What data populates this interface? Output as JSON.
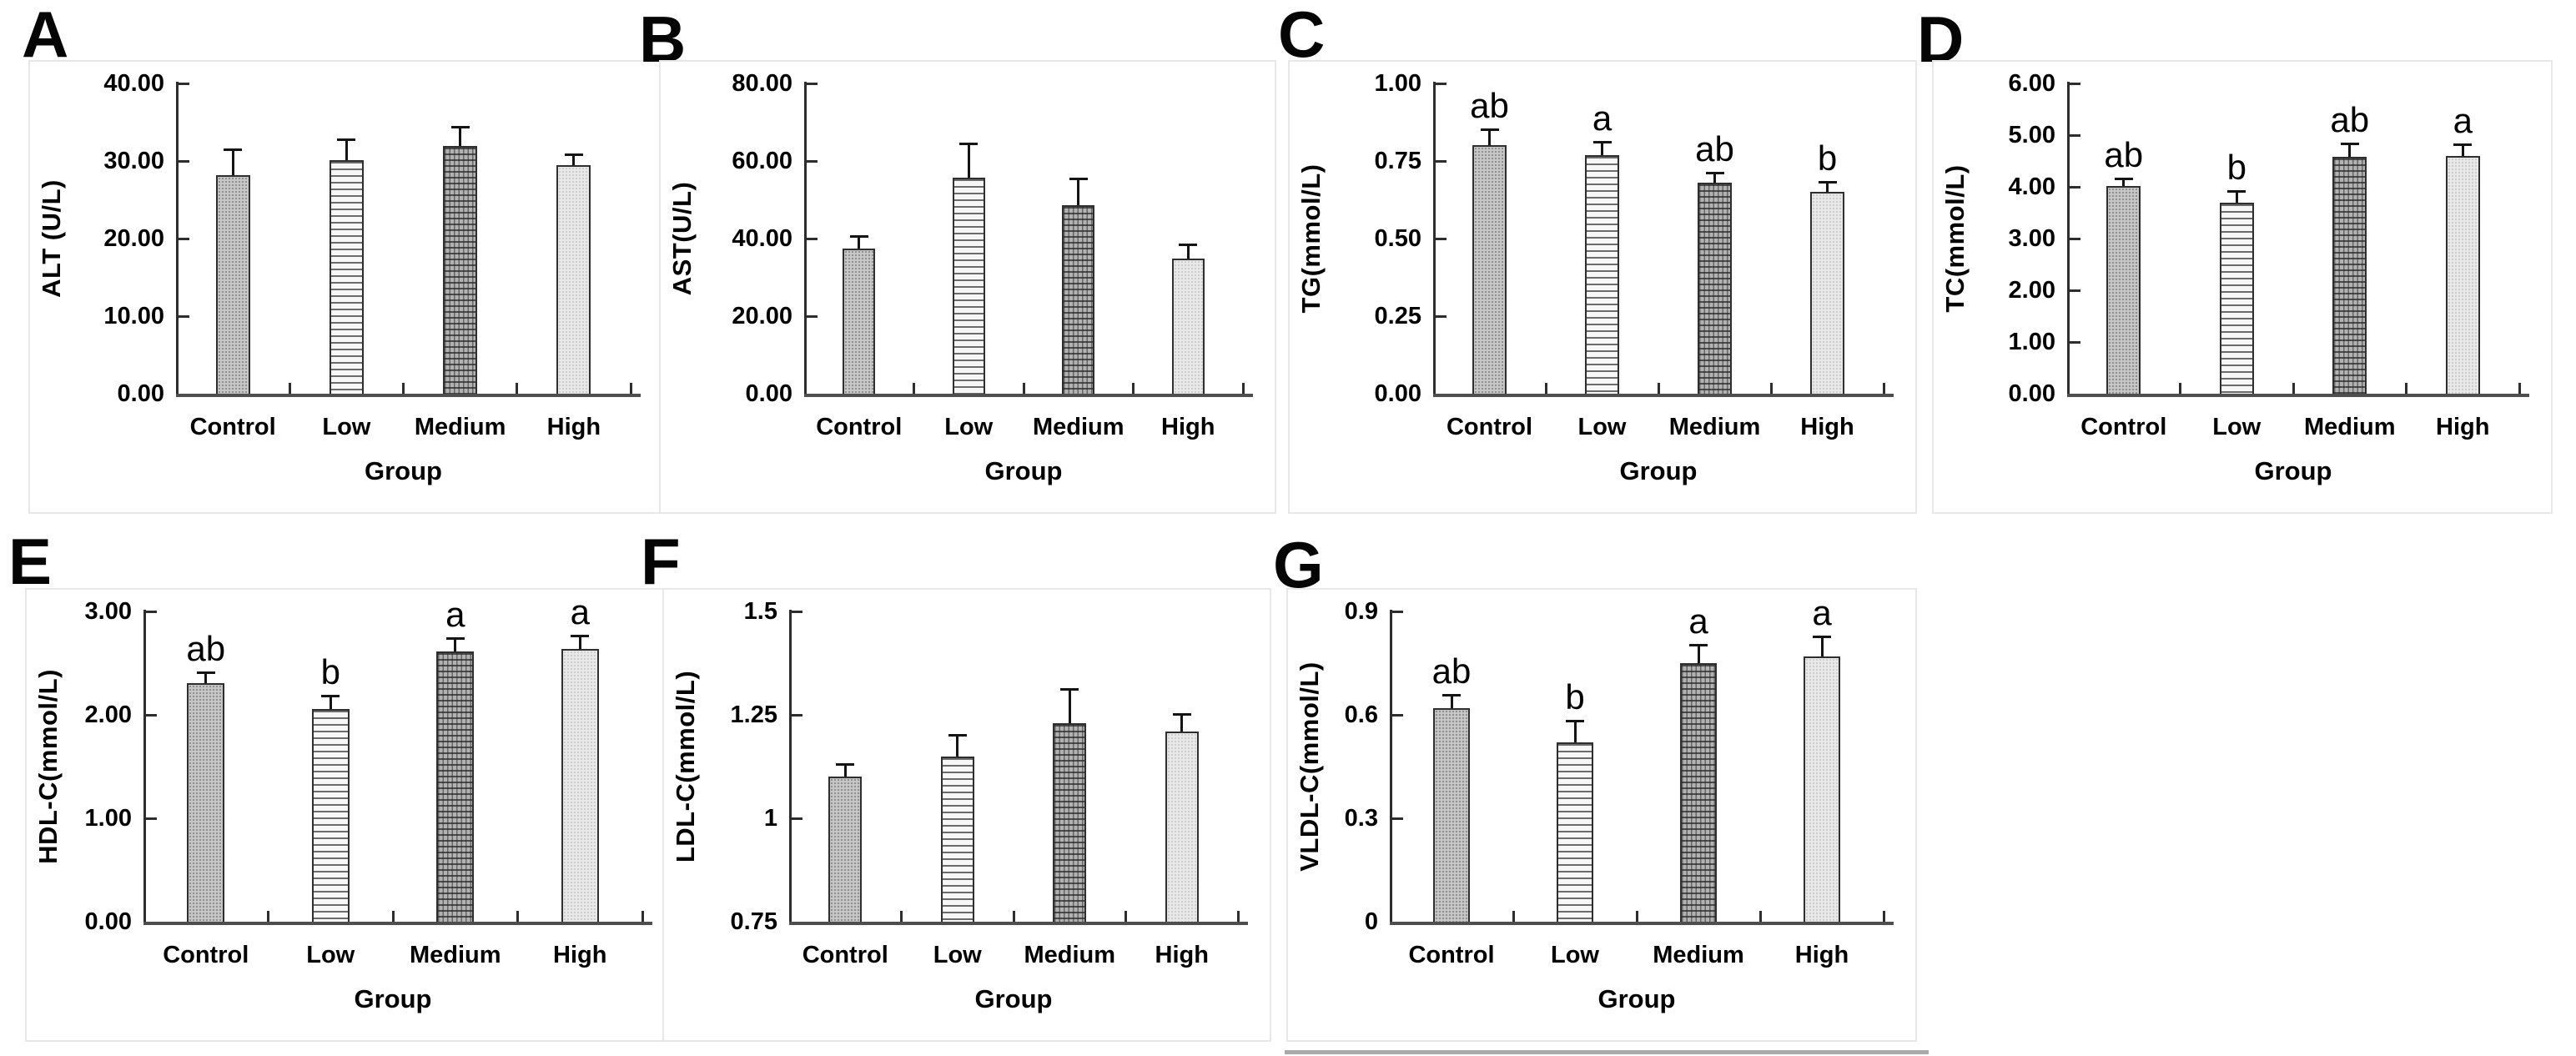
{
  "figure": {
    "xlabel": "Group",
    "categories": [
      "Control",
      "Low",
      "Medium",
      "High"
    ],
    "panel_letters": [
      "A",
      "B",
      "C",
      "D",
      "E",
      "F",
      "G"
    ],
    "pattern_legend": {
      "Control": "fine-dot-medium-gray",
      "Low": "horizontal-lines",
      "Medium": "dark-grid-crosshatch",
      "High": "fine-dot-light-gray"
    },
    "colors": {
      "background": "#ffffff",
      "panel_border": "#e8e8e8",
      "axis": "#2d2d2d",
      "x_axis": "#4e4e4e",
      "bar_border": "#2e2e2e",
      "error_bar": "#141414",
      "text": "#000000",
      "bar_fill_control": "#c6c6c6",
      "bar_fill_low": "#f6f6f6",
      "bar_fill_medium": "#b2b2b2",
      "bar_fill_high": "#e8e8e8"
    }
  },
  "chart_data": [
    {
      "panel_letter": "A",
      "type": "bar",
      "title": "",
      "ylabel": "ALT (U/L)",
      "xlabel": "Group",
      "categories": [
        "Control",
        "Low",
        "Medium",
        "High"
      ],
      "values": [
        28.2,
        30.1,
        31.9,
        29.5
      ],
      "errors_upper": [
        3.2,
        2.6,
        2.4,
        1.3
      ],
      "sig_letters": [
        "",
        "",
        "",
        ""
      ],
      "ylim": [
        0,
        40
      ],
      "yticks": [
        {
          "value": 0,
          "label": "0.00"
        },
        {
          "value": 10,
          "label": "10.00"
        },
        {
          "value": 20,
          "label": "20.00"
        },
        {
          "value": 30,
          "label": "30.00"
        },
        {
          "value": 40,
          "label": "40.00"
        }
      ],
      "bar_patterns": [
        "dots-medium",
        "hlines",
        "grid-dark",
        "dots-light"
      ],
      "grid": false,
      "error_bars": "upper-only"
    },
    {
      "panel_letter": "B",
      "type": "bar",
      "title": "",
      "ylabel": "AST(U/L)",
      "xlabel": "Group",
      "categories": [
        "Control",
        "Low",
        "Medium",
        "High"
      ],
      "values": [
        37.5,
        55.8,
        48.5,
        34.8
      ],
      "errors_upper": [
        3.0,
        8.6,
        6.7,
        3.5
      ],
      "sig_letters": [
        "",
        "",
        "",
        ""
      ],
      "ylim": [
        0,
        80
      ],
      "yticks": [
        {
          "value": 0,
          "label": "0.00"
        },
        {
          "value": 20,
          "label": "20.00"
        },
        {
          "value": 40,
          "label": "40.00"
        },
        {
          "value": 60,
          "label": "60.00"
        },
        {
          "value": 80,
          "label": "80.00"
        }
      ],
      "bar_patterns": [
        "dots-medium",
        "hlines",
        "grid-dark",
        "dots-light"
      ],
      "grid": false,
      "error_bars": "upper-only"
    },
    {
      "panel_letter": "C",
      "type": "bar",
      "title": "",
      "ylabel": "TG(mmol/L)",
      "xlabel": "Group",
      "categories": [
        "Control",
        "Low",
        "Medium",
        "High"
      ],
      "values": [
        0.8,
        0.77,
        0.68,
        0.65
      ],
      "errors_upper": [
        0.05,
        0.04,
        0.03,
        0.03
      ],
      "sig_letters": [
        "ab",
        "a",
        "ab",
        "b"
      ],
      "ylim": [
        0,
        1.0
      ],
      "yticks": [
        {
          "value": 0,
          "label": "0.00"
        },
        {
          "value": 0.25,
          "label": "0.25"
        },
        {
          "value": 0.5,
          "label": "0.50"
        },
        {
          "value": 0.75,
          "label": "0.75"
        },
        {
          "value": 1.0,
          "label": "1.00"
        }
      ],
      "bar_patterns": [
        "dots-medium",
        "hlines",
        "grid-dark",
        "dots-light"
      ],
      "grid": false,
      "error_bars": "upper-only"
    },
    {
      "panel_letter": "D",
      "type": "bar",
      "title": "",
      "ylabel": "TC(mmol/L)",
      "xlabel": "Group",
      "categories": [
        "Control",
        "Low",
        "Medium",
        "High"
      ],
      "values": [
        4.02,
        3.7,
        4.58,
        4.6
      ],
      "errors_upper": [
        0.12,
        0.2,
        0.25,
        0.21
      ],
      "sig_letters": [
        "ab",
        "b",
        "ab",
        "a"
      ],
      "ylim": [
        0,
        6.0
      ],
      "yticks": [
        {
          "value": 0,
          "label": "0.00"
        },
        {
          "value": 1,
          "label": "1.00"
        },
        {
          "value": 2,
          "label": "2.00"
        },
        {
          "value": 3,
          "label": "3.00"
        },
        {
          "value": 4,
          "label": "4.00"
        },
        {
          "value": 5,
          "label": "5.00"
        },
        {
          "value": 6,
          "label": "6.00"
        }
      ],
      "bar_patterns": [
        "dots-medium",
        "hlines",
        "grid-dark",
        "dots-light"
      ],
      "grid": false,
      "error_bars": "upper-only"
    },
    {
      "panel_letter": "E",
      "type": "bar",
      "title": "",
      "ylabel": "HDL-C(mmol/L)",
      "xlabel": "Group",
      "categories": [
        "Control",
        "Low",
        "Medium",
        "High"
      ],
      "values": [
        2.31,
        2.06,
        2.61,
        2.64
      ],
      "errors_upper": [
        0.09,
        0.12,
        0.12,
        0.12
      ],
      "sig_letters": [
        "ab",
        "b",
        "a",
        "a"
      ],
      "ylim": [
        0,
        3.0
      ],
      "yticks": [
        {
          "value": 0,
          "label": "0.00"
        },
        {
          "value": 1,
          "label": "1.00"
        },
        {
          "value": 2,
          "label": "2.00"
        },
        {
          "value": 3,
          "label": "3.00"
        }
      ],
      "bar_patterns": [
        "dots-medium",
        "hlines",
        "grid-dark",
        "dots-light"
      ],
      "grid": false,
      "error_bars": "upper-only"
    },
    {
      "panel_letter": "F",
      "type": "bar",
      "title": "",
      "ylabel": "LDL-C(mmol/L)",
      "xlabel": "Group",
      "categories": [
        "Control",
        "Low",
        "Medium",
        "High"
      ],
      "values": [
        1.1,
        1.15,
        1.23,
        1.21
      ],
      "errors_upper": [
        0.03,
        0.05,
        0.08,
        0.04
      ],
      "sig_letters": [
        "",
        "",
        "",
        ""
      ],
      "ylim": [
        0.75,
        1.5
      ],
      "yticks": [
        {
          "value": 0.75,
          "label": "0.75"
        },
        {
          "value": 1.0,
          "label": "1"
        },
        {
          "value": 1.25,
          "label": "1.25"
        },
        {
          "value": 1.5,
          "label": "1.5"
        }
      ],
      "bar_patterns": [
        "dots-medium",
        "hlines",
        "grid-dark",
        "dots-light"
      ],
      "grid": false,
      "error_bars": "upper-only"
    },
    {
      "panel_letter": "G",
      "type": "bar",
      "title": "",
      "ylabel": "VLDL-C(mmol/L)",
      "xlabel": "Group",
      "categories": [
        "Control",
        "Low",
        "Medium",
        "High"
      ],
      "values": [
        0.62,
        0.52,
        0.75,
        0.77
      ],
      "errors_upper": [
        0.035,
        0.06,
        0.05,
        0.055
      ],
      "sig_letters": [
        "ab",
        "b",
        "a",
        "a"
      ],
      "ylim": [
        0,
        0.9
      ],
      "yticks": [
        {
          "value": 0,
          "label": "0"
        },
        {
          "value": 0.3,
          "label": "0.3"
        },
        {
          "value": 0.6,
          "label": "0.6"
        },
        {
          "value": 0.9,
          "label": "0.9"
        }
      ],
      "bar_patterns": [
        "dots-medium",
        "hlines",
        "grid-dark",
        "dots-light"
      ],
      "grid": false,
      "error_bars": "upper-only"
    }
  ]
}
